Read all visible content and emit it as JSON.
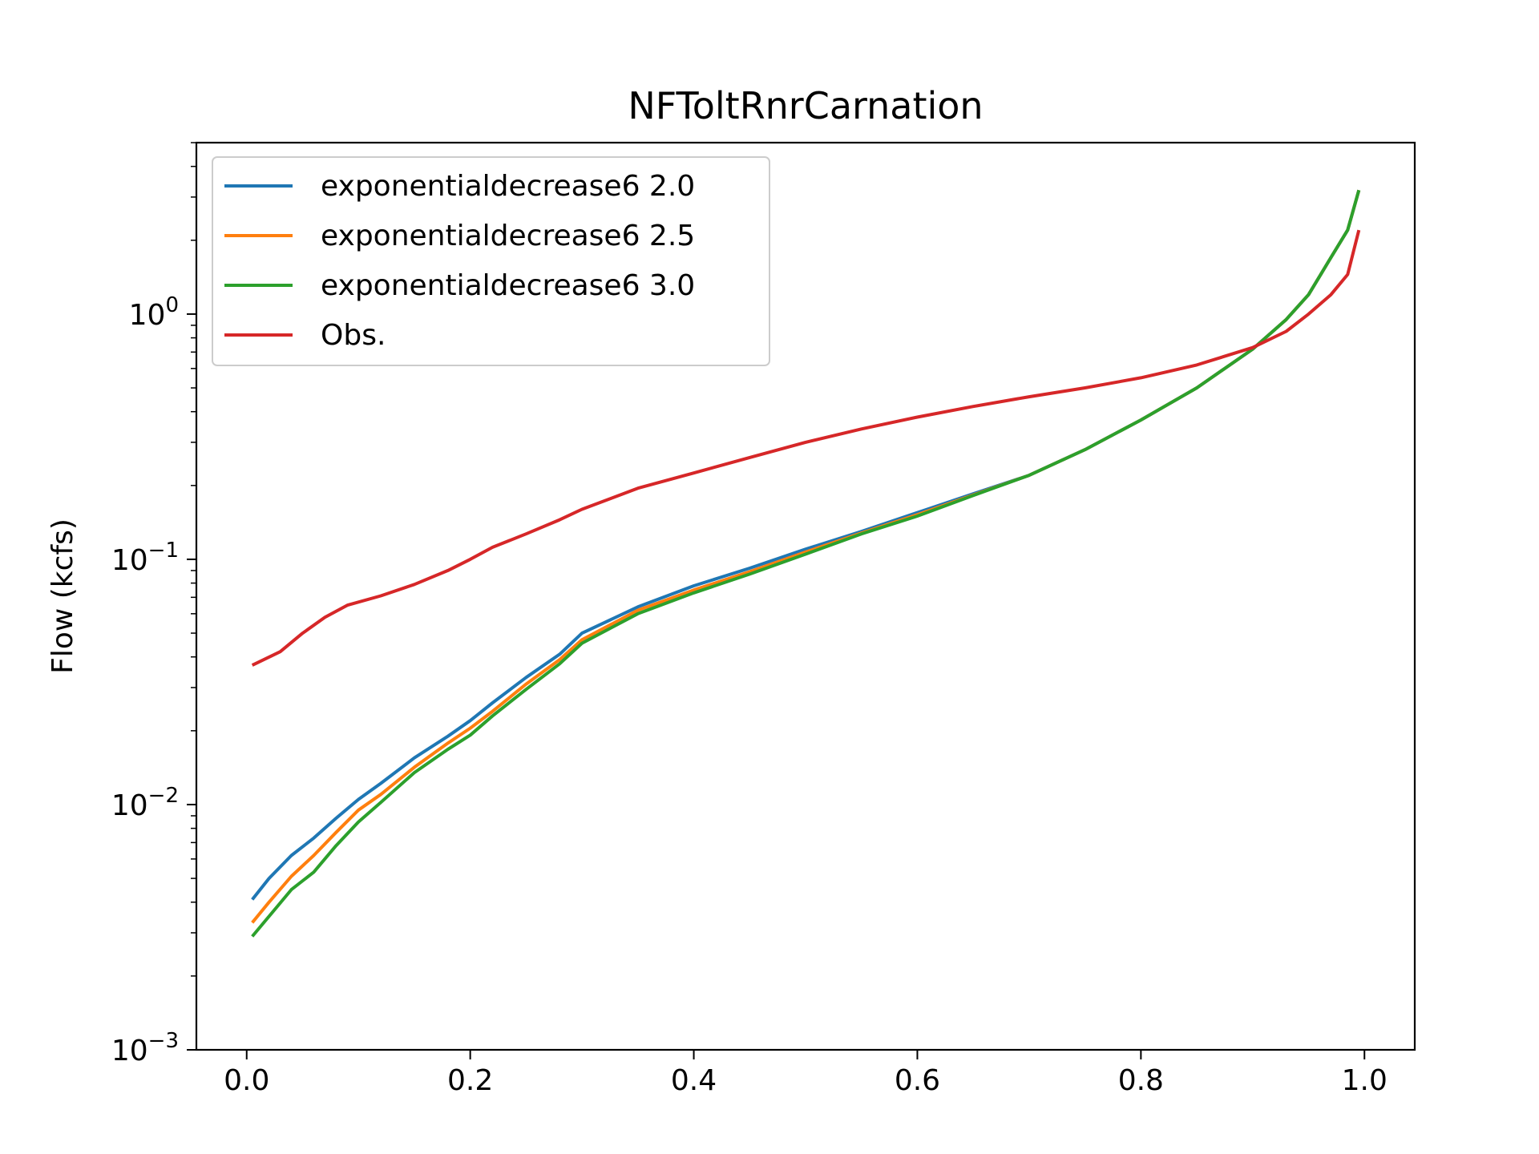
{
  "chart_data": {
    "type": "line",
    "title": "NFToltRnrCarnation",
    "xlabel": "",
    "ylabel": "Flow (kcfs)",
    "yscale": "log",
    "xlim": [
      -0.045,
      1.045
    ],
    "ylim": [
      0.001,
      5.0
    ],
    "xticks": [
      0.0,
      0.2,
      0.4,
      0.6,
      0.8,
      1.0
    ],
    "xtick_labels": [
      "0.0",
      "0.2",
      "0.4",
      "0.6",
      "0.8",
      "1.0"
    ],
    "yticks": [
      {
        "value": 1,
        "base": "10",
        "exp": "0"
      },
      {
        "value": 0.1,
        "base": "10",
        "exp": "−1"
      },
      {
        "value": 0.01,
        "base": "10",
        "exp": "−2"
      },
      {
        "value": 0.001,
        "base": "10",
        "exp": "−3"
      }
    ],
    "grid": false,
    "legend_position": "upper-left",
    "series": [
      {
        "name": "exponentialdecrease6 2.0",
        "color": "#1f77b4",
        "x": [
          0.005,
          0.02,
          0.04,
          0.06,
          0.08,
          0.1,
          0.12,
          0.15,
          0.18,
          0.2,
          0.22,
          0.25,
          0.28,
          0.3,
          0.35,
          0.4,
          0.45,
          0.5,
          0.55,
          0.6,
          0.65,
          0.7,
          0.75,
          0.8,
          0.85,
          0.9,
          0.93,
          0.95,
          0.97,
          0.985,
          0.995
        ],
        "y": [
          0.0041,
          0.005,
          0.0062,
          0.0073,
          0.0088,
          0.0105,
          0.0122,
          0.0155,
          0.019,
          0.022,
          0.026,
          0.033,
          0.041,
          0.05,
          0.064,
          0.078,
          0.092,
          0.11,
          0.13,
          0.155,
          0.185,
          0.22,
          0.28,
          0.37,
          0.5,
          0.72,
          0.95,
          1.2,
          1.7,
          2.2,
          3.2
        ]
      },
      {
        "name": "exponentialdecrease6 2.5",
        "color": "#ff7f0e",
        "x": [
          0.005,
          0.02,
          0.04,
          0.06,
          0.08,
          0.1,
          0.12,
          0.15,
          0.18,
          0.2,
          0.22,
          0.25,
          0.28,
          0.3,
          0.35,
          0.4,
          0.45,
          0.5,
          0.55,
          0.6,
          0.65,
          0.7,
          0.75,
          0.8,
          0.85,
          0.9,
          0.93,
          0.95,
          0.97,
          0.985,
          0.995
        ],
        "y": [
          0.0033,
          0.004,
          0.0051,
          0.0062,
          0.0077,
          0.0095,
          0.011,
          0.0142,
          0.0178,
          0.0205,
          0.024,
          0.031,
          0.039,
          0.047,
          0.062,
          0.075,
          0.089,
          0.107,
          0.128,
          0.152,
          0.183,
          0.22,
          0.28,
          0.37,
          0.5,
          0.72,
          0.95,
          1.2,
          1.7,
          2.2,
          3.2
        ]
      },
      {
        "name": "exponentialdecrease6 3.0",
        "color": "#2ca02c",
        "x": [
          0.005,
          0.02,
          0.04,
          0.06,
          0.08,
          0.1,
          0.12,
          0.15,
          0.18,
          0.2,
          0.22,
          0.25,
          0.28,
          0.3,
          0.35,
          0.4,
          0.45,
          0.5,
          0.55,
          0.6,
          0.65,
          0.7,
          0.75,
          0.8,
          0.85,
          0.9,
          0.93,
          0.95,
          0.97,
          0.985,
          0.995
        ],
        "y": [
          0.0029,
          0.0035,
          0.0045,
          0.0053,
          0.0068,
          0.0085,
          0.0102,
          0.0135,
          0.0168,
          0.0192,
          0.023,
          0.0295,
          0.0375,
          0.0455,
          0.06,
          0.073,
          0.087,
          0.105,
          0.127,
          0.15,
          0.182,
          0.22,
          0.28,
          0.37,
          0.5,
          0.72,
          0.95,
          1.2,
          1.7,
          2.2,
          3.2
        ]
      },
      {
        "name": "Obs.",
        "color": "#d62728",
        "x": [
          0.005,
          0.03,
          0.05,
          0.07,
          0.09,
          0.12,
          0.15,
          0.18,
          0.2,
          0.22,
          0.25,
          0.28,
          0.3,
          0.35,
          0.4,
          0.45,
          0.5,
          0.55,
          0.6,
          0.65,
          0.7,
          0.75,
          0.8,
          0.85,
          0.9,
          0.93,
          0.95,
          0.97,
          0.985,
          0.995
        ],
        "y": [
          0.037,
          0.042,
          0.05,
          0.058,
          0.065,
          0.071,
          0.079,
          0.09,
          0.1,
          0.112,
          0.127,
          0.145,
          0.16,
          0.195,
          0.225,
          0.26,
          0.3,
          0.34,
          0.38,
          0.42,
          0.46,
          0.5,
          0.55,
          0.62,
          0.73,
          0.85,
          1.0,
          1.2,
          1.45,
          2.2
        ]
      }
    ]
  }
}
